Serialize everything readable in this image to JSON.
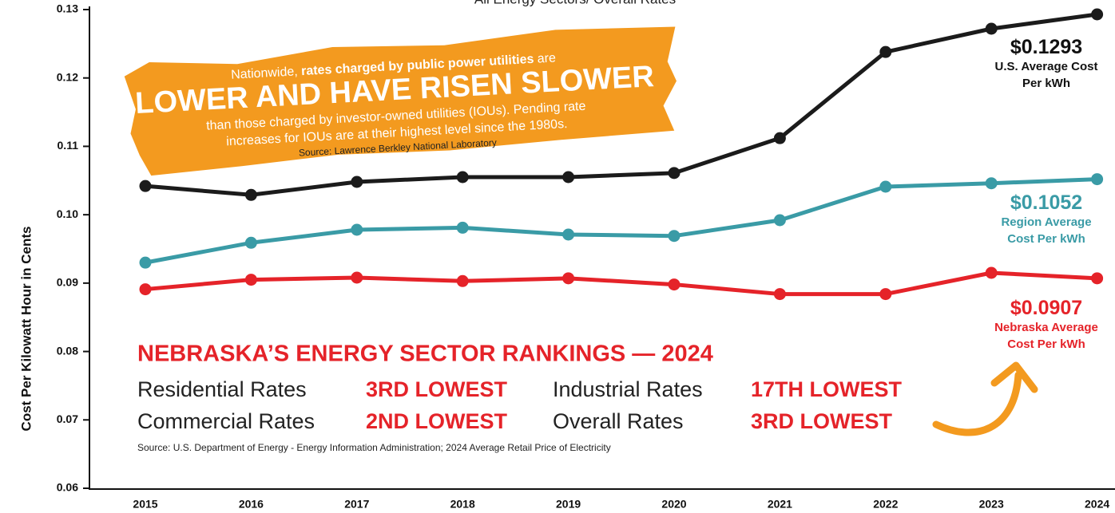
{
  "chart_data": {
    "type": "line",
    "title": "All Energy Sectors/ Overall Rates",
    "ylabel": "Cost Per Kilowatt Hour in Cents",
    "categories": [
      "2015",
      "2016",
      "2017",
      "2018",
      "2019",
      "2020",
      "2021",
      "2022",
      "2023",
      "2024"
    ],
    "ylim": [
      0.06,
      0.13
    ],
    "yticks": [
      0.06,
      0.07,
      0.08,
      0.09,
      {
        "value": 0.1,
        "label": "0.10"
      },
      0.11,
      0.12,
      0.13
    ],
    "series": [
      {
        "name": "U.S. Average Cost Per kWh",
        "color": "#1b1b1b",
        "end_label": "$0.1293",
        "values": [
          0.1042,
          0.1029,
          0.1048,
          0.1055,
          0.1055,
          0.1061,
          0.1112,
          0.1238,
          0.1272,
          0.1293
        ]
      },
      {
        "name": "Region Average Cost Per kWh",
        "color": "#3a9ba6",
        "end_label": "$0.1052",
        "values": [
          0.093,
          0.0959,
          0.0978,
          0.0981,
          0.0971,
          0.0969,
          0.0992,
          0.1041,
          0.1046,
          0.1052
        ]
      },
      {
        "name": "Nebraska Average Cost Per kWh",
        "color": "#e52329",
        "end_label": "$0.0907",
        "values": [
          0.0891,
          0.0905,
          0.0908,
          0.0903,
          0.0907,
          0.0898,
          0.0884,
          0.0884,
          0.0915,
          0.0907
        ]
      }
    ],
    "callout": {
      "line1": [
        "Nationwide, ",
        "rates charged by public power utilities",
        " are"
      ],
      "headline": "LOWER AND HAVE RISEN SLOWER",
      "line3": "than those charged by investor-owned utilities (IOUs). Pending rate",
      "line4": "increases for IOUs are at their highest level since the 1980s.",
      "source": "Source: Lawrence Berkley National Laboratory"
    },
    "rankings": {
      "title": "NEBRASKA’S ENERGY SECTOR RANKINGS — 2024",
      "rows": [
        [
          {
            "label": "Residential Rates",
            "rank": "3RD LOWEST"
          },
          {
            "label": "Industrial Rates",
            "rank": "17TH LOWEST"
          }
        ],
        [
          {
            "label": "Commercial Rates",
            "rank": "2ND LOWEST"
          },
          {
            "label": "Overall Rates",
            "rank": "3RD LOWEST"
          }
        ]
      ],
      "source": "Source: U.S. Department of Energy - Energy Information Administration; 2024 Average Retail Price of Electricity"
    }
  }
}
